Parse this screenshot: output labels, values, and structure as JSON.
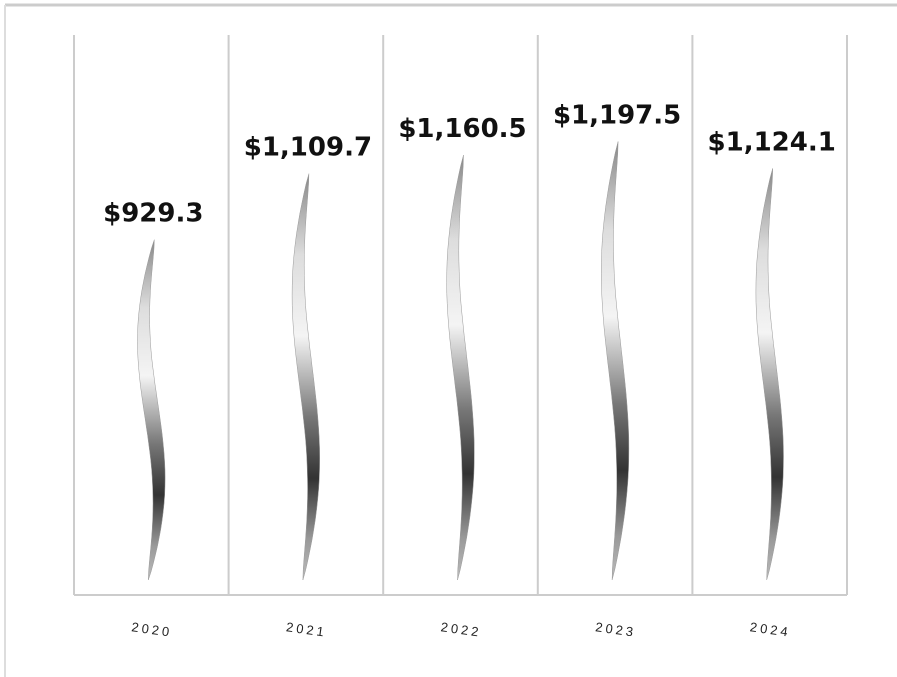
{
  "chart_data": {
    "type": "ribbon",
    "categories": [
      "2020",
      "2021",
      "2022",
      "2023",
      "2024"
    ],
    "values": [
      929.3,
      1109.7,
      1160.5,
      1197.5,
      1124.1
    ],
    "value_labels": [
      "$929.3",
      "$1,109.7",
      "$1,160.5",
      "$1,197.5",
      "$1,124.1"
    ],
    "ylim": [
      0,
      1300
    ]
  }
}
